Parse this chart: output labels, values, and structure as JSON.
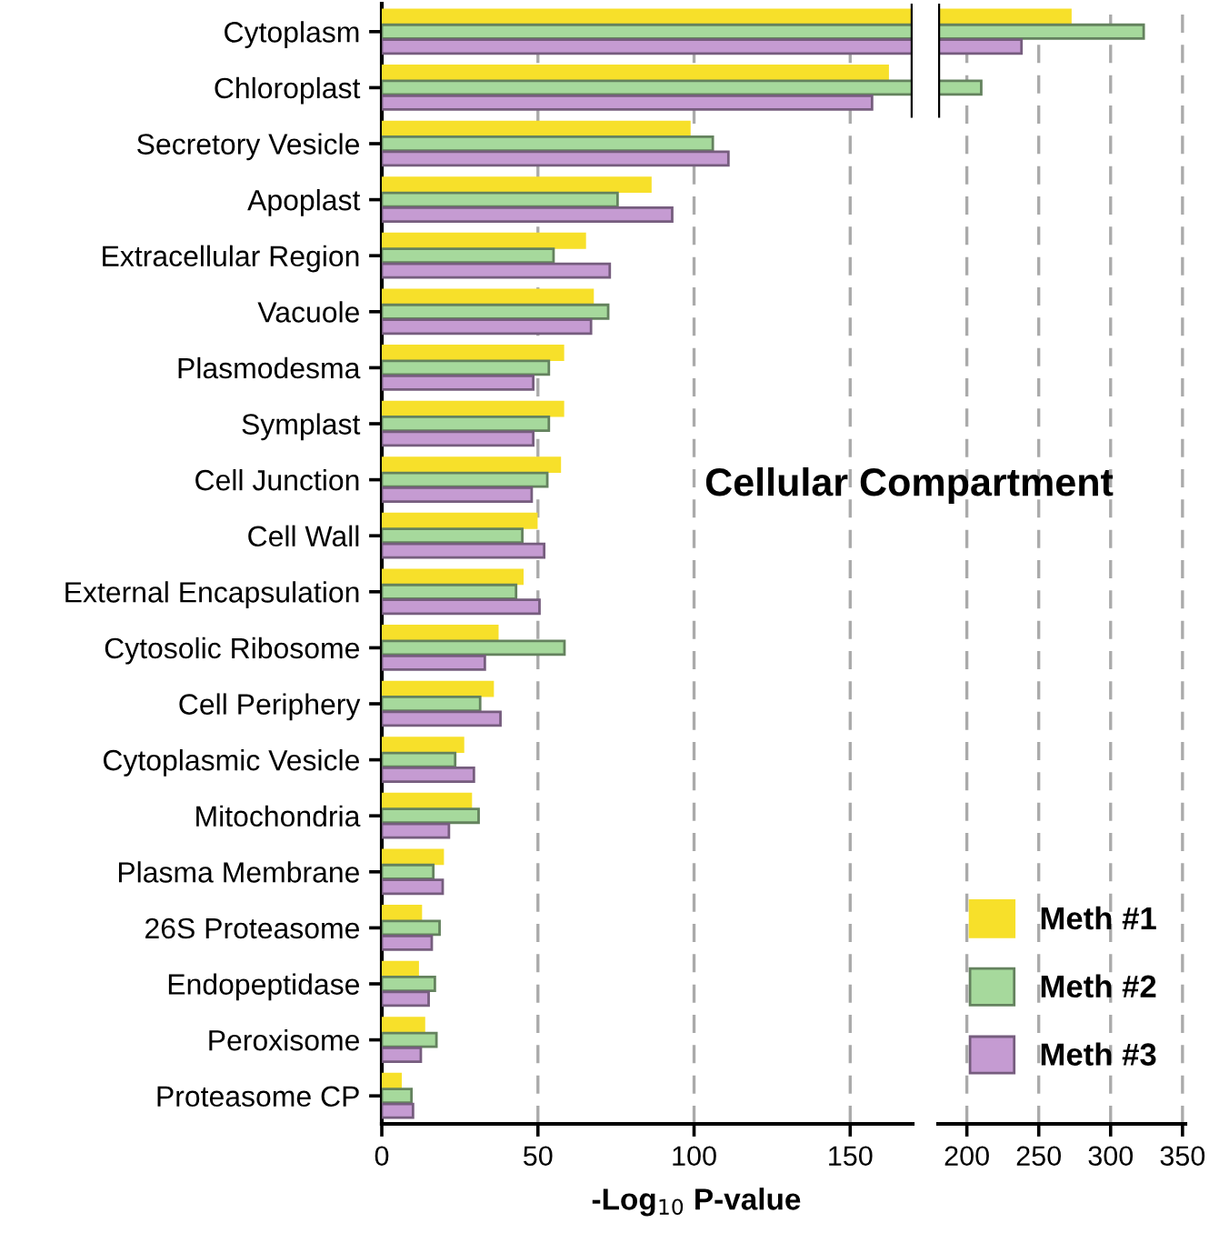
{
  "chart_data": [
    {
      "type": "bar",
      "orientation": "horizontal",
      "title": "Cellular Compartment",
      "xlabel": "-Log$_{10}$ P-value",
      "categories": [
        "Cytoplasm",
        "Chloroplast",
        "Secretory Vesicle",
        "Apoplast",
        "Extracellular Region",
        "Vacuole",
        "Plasmodesma",
        "Symplast",
        "Cell Junction",
        "Cell Wall",
        "External Encapsulation",
        "Cytosolic Ribosome",
        "Cell Periphery",
        "Cytoplasmic Vesicle",
        "Mitochondria",
        "Plasma Membrane",
        "26S Proteasome",
        "Endopeptidase",
        "Peroxisome",
        "Proteasome CP"
      ],
      "series": [
        {
          "color": "#f7e02a",
          "values": [
            170,
            162,
            98.5,
            86,
            65,
            67.5,
            58,
            58,
            57,
            49.5,
            45,
            37,
            35.5,
            26,
            28.5,
            19.5,
            12.5,
            11.5,
            13.5,
            6
          ]
        },
        {
          "color": "#a6d99c",
          "values": [
            170,
            170,
            106,
            75.5,
            55,
            72.5,
            53.5,
            53.5,
            53,
            45,
            43,
            58.5,
            31.5,
            23.5,
            31,
            16.5,
            18.5,
            17,
            17.5,
            9.5
          ]
        },
        {
          "color": "#c59bd2",
          "values": [
            170,
            157,
            111,
            93,
            73,
            67,
            48.5,
            48.5,
            48,
            52,
            50.5,
            33,
            38,
            29.5,
            21.5,
            19.5,
            16,
            15,
            12.5,
            10
          ]
        }
      ],
      "xlim": [
        0,
        170
      ],
      "xticks": [
        0,
        50,
        100,
        150
      ],
      "grid": "x"
    },
    {
      "type": "bar",
      "orientation": "horizontal",
      "series": [
        {
          "name": "Meth #1",
          "color": "#f7e02a",
          "values": [
            272,
            null,
            null,
            null,
            null,
            null,
            null,
            null,
            null,
            null,
            null,
            null,
            null,
            null,
            null,
            null,
            null,
            null,
            null,
            null
          ]
        },
        {
          "name": "Meth #2",
          "color": "#a6d99c",
          "values": [
            323,
            210,
            null,
            null,
            null,
            null,
            null,
            null,
            null,
            null,
            null,
            null,
            null,
            null,
            null,
            null,
            null,
            null,
            null,
            null
          ]
        },
        {
          "name": "Meth #3",
          "color": "#c59bd2",
          "values": [
            238,
            null,
            null,
            null,
            null,
            null,
            null,
            null,
            null,
            null,
            null,
            null,
            null,
            null,
            null,
            null,
            null,
            null,
            null,
            null
          ]
        }
      ],
      "xlim": [
        180,
        352
      ],
      "xticks": [
        200,
        250,
        300,
        350
      ],
      "grid": "x",
      "legend": "bottom right"
    }
  ]
}
